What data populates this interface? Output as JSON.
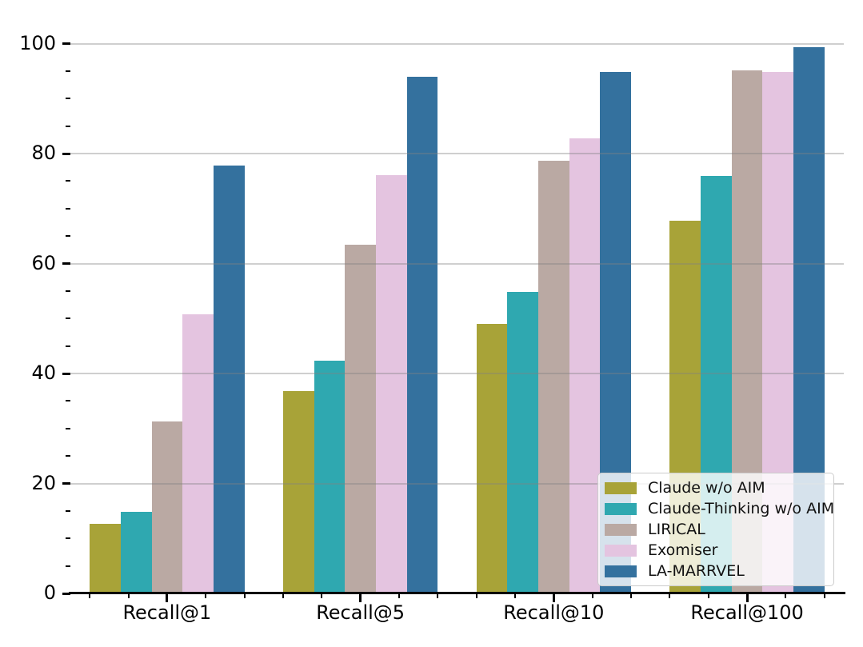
{
  "figure": {
    "background": "#ffffff"
  },
  "chart_data": {
    "type": "bar",
    "title": "",
    "xlabel": "",
    "ylabel": "",
    "categories": [
      "Recall@1",
      "Recall@5",
      "Recall@10",
      "Recall@100"
    ],
    "series": [
      {
        "name": "Claude w/o AIM",
        "color": "#a8a338",
        "values": [
          12.7,
          36.8,
          49.0,
          67.8
        ]
      },
      {
        "name": "Claude-Thinking w/o AIM",
        "color": "#2fa8b0",
        "values": [
          14.8,
          42.3,
          54.8,
          75.9
        ]
      },
      {
        "name": "LIRICAL",
        "color": "#baa9a3",
        "values": [
          31.3,
          63.4,
          78.7,
          95.2
        ]
      },
      {
        "name": "Exomiser",
        "color": "#e4c4e0",
        "values": [
          50.7,
          76.1,
          82.8,
          94.9
        ]
      },
      {
        "name": "LA-MARRVEL",
        "color": "#34719e",
        "values": [
          77.8,
          94.0,
          94.9,
          99.4
        ]
      }
    ],
    "ylim": [
      0,
      100
    ],
    "yticks": [
      0,
      20,
      40,
      60,
      80,
      100
    ],
    "y_minor_step": 5,
    "x_minor_step": 0.2,
    "bar_group_width": 0.8,
    "grid": "horizontal-major",
    "grid_over_bars": true,
    "legend_position": "lower-right",
    "spines": [
      "bottom"
    ]
  }
}
